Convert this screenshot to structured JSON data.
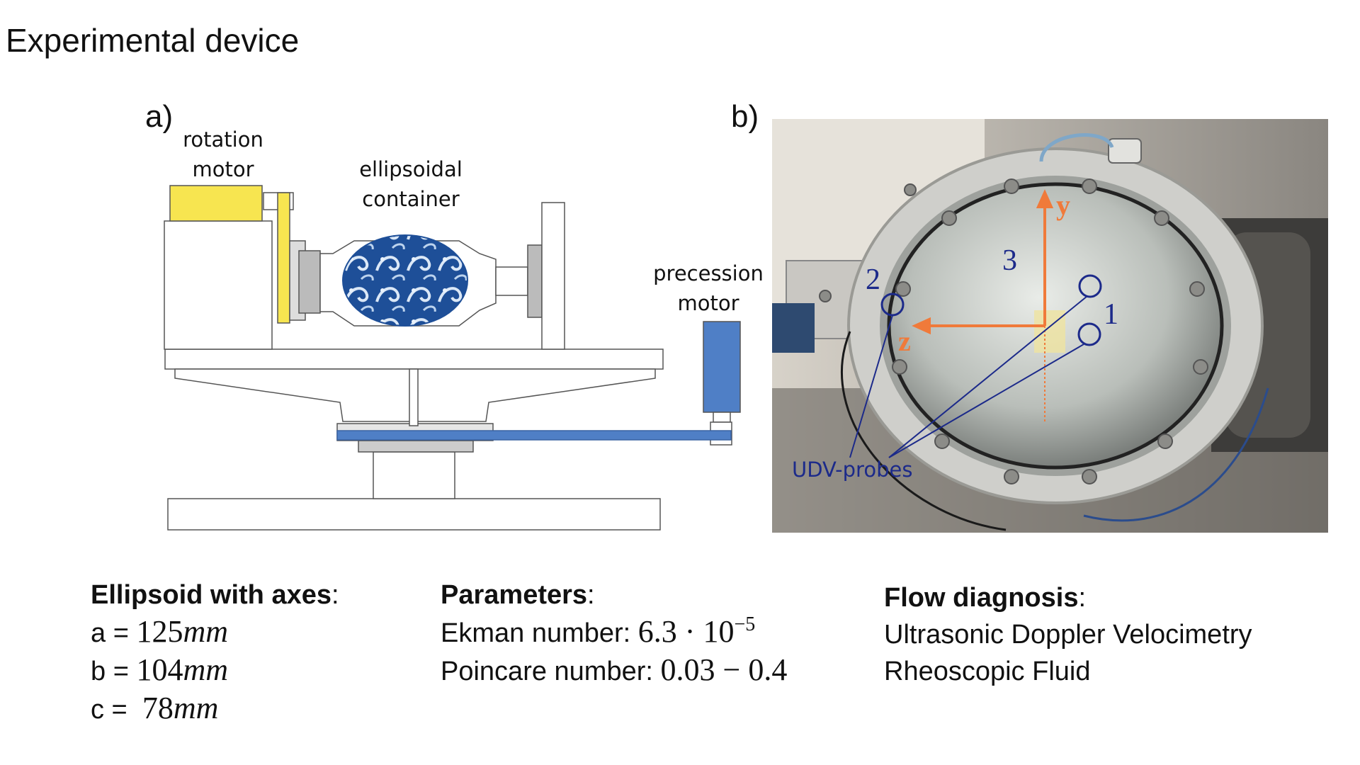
{
  "title": "Experimental device",
  "panel_a": {
    "label": "a)",
    "rotation_motor": [
      "rotation",
      "motor"
    ],
    "ellipsoidal_container": [
      "ellipsoidal",
      "container"
    ],
    "precession_motor": [
      "precession",
      "motor"
    ]
  },
  "panel_b": {
    "label": "b)",
    "axis_y": "y",
    "axis_z": "z",
    "probe_1": "1",
    "probe_2": "2",
    "probe_3": "3",
    "udv_label": "UDV-probes"
  },
  "ellipsoid": {
    "heading": "Ellipsoid with axes",
    "colon": ":",
    "rows": [
      {
        "name": "a = ",
        "value": "125",
        "unit": "mm"
      },
      {
        "name": "b = ",
        "value": "104",
        "unit": "mm"
      },
      {
        "name": "c =  ",
        "value": "78",
        "unit": "mm"
      }
    ]
  },
  "parameters": {
    "heading": "Parameters",
    "colon": ":",
    "ekman_label": "Ekman number: ",
    "ekman_value": "6.3 · 10",
    "ekman_exponent": "−5",
    "poincare_label": "Poincare number: ",
    "poincare_value": "0.03 − 0.4"
  },
  "flow": {
    "heading": "Flow diagnosis",
    "colon": ":",
    "items": [
      "Ultrasonic Doppler Velocimetry",
      "Rheoscopic Fluid"
    ]
  },
  "colors": {
    "motor_yellow": "#f7e550",
    "precession_blue": "#4f7fc6",
    "container_blue": "#1e4f98",
    "axis_orange": "#f07a3a",
    "probe_navy": "#1c2a8a"
  }
}
